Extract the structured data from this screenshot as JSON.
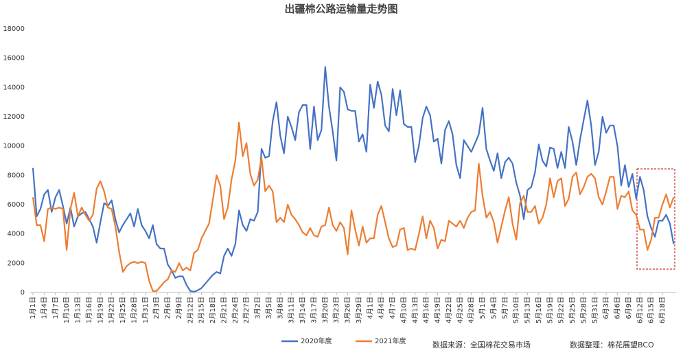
{
  "chart_data": {
    "type": "line",
    "title": "出疆棉公路运输量走势图",
    "categories": [
      "1月1日",
      null,
      null,
      "1月4日",
      null,
      null,
      "1月7日",
      null,
      null,
      "1月10日",
      null,
      null,
      "1月13日",
      null,
      null,
      "1月16日",
      null,
      null,
      "1月19日",
      null,
      null,
      "1月22日",
      null,
      null,
      "1月25日",
      null,
      null,
      "1月28日",
      null,
      null,
      "1月31日",
      null,
      null,
      "2月3日",
      null,
      null,
      "2月6日",
      null,
      null,
      "2月9日",
      null,
      null,
      "2月12日",
      null,
      null,
      "2月15日",
      null,
      null,
      "2月18日",
      null,
      null,
      "2月21日",
      null,
      null,
      "2月24日",
      null,
      null,
      "2月27日",
      null,
      null,
      "3月2日",
      null,
      null,
      "3月5日",
      null,
      null,
      "3月8日",
      null,
      null,
      "3月11日",
      null,
      null,
      "3月14日",
      null,
      null,
      "3月17日",
      null,
      null,
      "3月20日",
      null,
      null,
      "3月23日",
      null,
      null,
      "3月26日",
      null,
      null,
      "3月29日",
      null,
      null,
      "4月1日",
      null,
      null,
      "4月4日",
      null,
      null,
      "4月7日",
      null,
      null,
      "4月10日",
      null,
      null,
      "4月13日",
      null,
      null,
      "4月16日",
      null,
      null,
      "4月19日",
      null,
      null,
      "4月22日",
      null,
      null,
      "4月25日",
      null,
      null,
      "4月28日",
      null,
      null,
      "5月1日",
      null,
      null,
      "5月4日",
      null,
      null,
      "5月7日",
      null,
      null,
      "5月10日",
      null,
      null,
      "5月13日",
      null,
      null,
      "5月16日",
      null,
      null,
      "5月19日",
      null,
      null,
      "5月22日",
      null,
      null,
      "5月25日",
      null,
      null,
      "5月28日",
      null,
      null,
      "5月31日",
      null,
      null,
      "6月3日",
      null,
      null,
      "6月6日",
      null,
      null,
      "6月9日",
      null,
      null,
      "6月12日",
      null,
      null,
      "6月15日",
      null,
      null,
      "6月18日",
      null,
      null,
      null
    ],
    "series": [
      {
        "name": "2020年度",
        "color": "#4472c4",
        "values": [
          8500,
          5200,
          5700,
          6700,
          7000,
          5500,
          6500,
          7000,
          5900,
          4700,
          5800,
          4500,
          5200,
          5400,
          5500,
          5000,
          4500,
          3400,
          4800,
          6100,
          5900,
          6300,
          5000,
          4100,
          4600,
          5000,
          5400,
          4500,
          5700,
          4600,
          4200,
          3700,
          4600,
          3300,
          3000,
          3000,
          1900,
          1500,
          1000,
          1100,
          1100,
          500,
          100,
          50,
          150,
          300,
          600,
          900,
          1200,
          1400,
          1300,
          2500,
          3000,
          2500,
          3300,
          5600,
          4600,
          4200,
          5000,
          4900,
          5500,
          9800,
          9200,
          9300,
          11700,
          13000,
          10700,
          9500,
          12000,
          11300,
          10400,
          12300,
          12800,
          12800,
          9800,
          12700,
          10400,
          11100,
          15400,
          12700,
          11000,
          9000,
          14000,
          13700,
          12500,
          12400,
          12400,
          10300,
          10800,
          9600,
          14200,
          12600,
          14400,
          13500,
          11400,
          11000,
          13900,
          12100,
          13800,
          11500,
          11300,
          11300,
          8900,
          10000,
          11900,
          12700,
          12100,
          10300,
          10500,
          8800,
          11100,
          11700,
          10800,
          8700,
          7800,
          10400,
          10000,
          9600,
          10200,
          10800,
          12600,
          9800,
          9000,
          8300,
          9500,
          7800,
          8900,
          9200,
          8800,
          7500,
          6600,
          5000,
          7000,
          7200,
          8200,
          10100,
          9000,
          8600,
          9900,
          9800,
          8500,
          9600,
          8500,
          11300,
          10300,
          8700,
          10400,
          11800,
          13100,
          11400,
          8700,
          9600,
          12000,
          10900,
          11400,
          11400,
          10000,
          7300,
          8700,
          7200,
          8100,
          6400,
          7900,
          7000,
          5200,
          4400,
          3800,
          4900,
          4900,
          5300,
          4700,
          3300
        ]
      },
      {
        "name": "2021年度",
        "color": "#ed7d31",
        "values": [
          6500,
          4600,
          4600,
          3500,
          5700,
          5800,
          5700,
          5800,
          5700,
          2900,
          5700,
          6800,
          5200,
          5800,
          5300,
          4900,
          5300,
          7100,
          7600,
          6900,
          5800,
          5700,
          4500,
          2800,
          1400,
          1800,
          2000,
          2100,
          2000,
          2100,
          2000,
          800,
          100,
          100,
          400,
          700,
          900,
          1500,
          1400,
          2000,
          1500,
          1700,
          1500,
          2700,
          2900,
          3700,
          4200,
          4700,
          6300,
          8000,
          7300,
          5000,
          5800,
          7700,
          9000,
          11600,
          9300,
          10200,
          8100,
          7300,
          7700,
          9200,
          6900,
          7300,
          6900,
          4800,
          5100,
          4800,
          6000,
          5300,
          5000,
          4600,
          4100,
          3900,
          4400,
          3900,
          3800,
          4500,
          4600,
          5800,
          4600,
          4200,
          4800,
          4400,
          2600,
          5600,
          4300,
          3200,
          4500,
          3400,
          3700,
          3700,
          5300,
          5900,
          4800,
          3700,
          3100,
          3200,
          4300,
          4400,
          2900,
          3000,
          2900,
          4000,
          5200,
          3700,
          4900,
          4400,
          3000,
          3600,
          3500,
          4900,
          4700,
          4500,
          4900,
          4400,
          5100,
          5500,
          5600,
          8800,
          6600,
          5100,
          5500,
          4800,
          3400,
          4500,
          5600,
          6500,
          4700,
          3600,
          6100,
          6600,
          5500,
          5500,
          5900,
          4700,
          5100,
          6000,
          7800,
          6500,
          7600,
          7800,
          5900,
          6400,
          7900,
          8200,
          6700,
          7200,
          7900,
          8100,
          7800,
          6500,
          6000,
          6900,
          7900,
          7900,
          5700,
          6600,
          6500,
          6900,
          5600,
          5300,
          4300,
          4300,
          2900,
          3600,
          5100,
          5100,
          6000,
          6700,
          5800,
          6500
        ]
      }
    ],
    "ylim": [
      0,
      18000
    ],
    "yticks": [
      0,
      2000,
      4000,
      6000,
      8000,
      10000,
      12000,
      14000,
      16000,
      18000
    ],
    "grid": false,
    "annotations": [
      "数据来源：全国棉花交易市场",
      "数据整理：棉花展望BCO"
    ]
  }
}
